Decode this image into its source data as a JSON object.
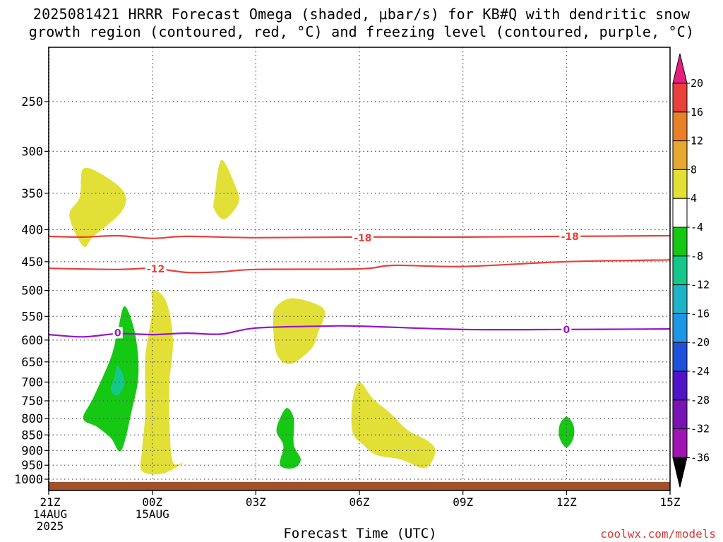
{
  "title": {
    "line1": "2025081421 HRRR Forecast Omega (shaded, μbar/s) for KB#Q with dendritic snow",
    "line2": "growth region (contoured, red, °C) and freezing level (contoured, purple, °C)"
  },
  "xlabel": "Forecast Time (UTC)",
  "credit": "coolwx.com/models",
  "chart_data": {
    "type": "heatmap",
    "title": "2025081421 HRRR Forecast Omega (shaded, μbar/s) for KB#Q with dendritic snow growth region (contoured, red, °C) and freezing level (contoured, purple, °C)",
    "xlabel": "Forecast Time (UTC)",
    "ylabel": "",
    "x_range_hours": [
      0,
      18
    ],
    "y_axis": {
      "ticks": [
        250,
        300,
        350,
        400,
        450,
        500,
        550,
        600,
        650,
        700,
        750,
        800,
        850,
        900,
        950,
        1000
      ],
      "range": [
        1020,
        200
      ],
      "scale": "log-pressure",
      "grid": true
    },
    "x_axis": {
      "ticks": [
        {
          "hour": 0,
          "lines": [
            "21Z",
            "14AUG",
            "2025"
          ]
        },
        {
          "hour": 3,
          "lines": [
            "00Z",
            "15AUG"
          ]
        },
        {
          "hour": 6,
          "lines": [
            "03Z"
          ]
        },
        {
          "hour": 9,
          "lines": [
            "06Z"
          ]
        },
        {
          "hour": 12,
          "lines": [
            "09Z"
          ]
        },
        {
          "hour": 15,
          "lines": [
            "12Z"
          ]
        },
        {
          "hour": 18,
          "lines": [
            "15Z"
          ]
        }
      ],
      "grid": true
    },
    "colorbar": {
      "labels": [
        "20",
        "16",
        "12",
        "8",
        "4",
        "-4",
        "-8",
        "-12",
        "-16",
        "-20",
        "-24",
        "-28",
        "-32",
        "-36"
      ],
      "colors": [
        "#e8c03a",
        "#e2e037",
        "#ffffff",
        "#14c814",
        "#14c88c",
        "#1eb4c8",
        "#1e96e6",
        "#1e50dc",
        "#5014c8",
        "#7814b4",
        "#a014b4",
        "#a0a0a0"
      ],
      "top_arrow_color": "#e6207a",
      "upper_colors": [
        "#e8403a",
        "#e88028",
        "#e6a830"
      ],
      "bottom_arrow_color": "#000000"
    },
    "contours": [
      {
        "name": "dendritic snow growth",
        "value": -18,
        "color": "#e8403a",
        "points": [
          [
            0,
            410
          ],
          [
            1,
            411
          ],
          [
            2,
            409
          ],
          [
            3,
            413
          ],
          [
            4,
            410
          ],
          [
            6,
            412
          ],
          [
            9,
            411
          ],
          [
            12,
            411
          ],
          [
            15,
            410
          ],
          [
            18,
            409
          ]
        ]
      },
      {
        "name": "dendritic snow growth",
        "value": -12,
        "color": "#e8403a",
        "points": [
          [
            0,
            461
          ],
          [
            2,
            463
          ],
          [
            3,
            461
          ],
          [
            4,
            468
          ],
          [
            5,
            467
          ],
          [
            6,
            463
          ],
          [
            9,
            462
          ],
          [
            10,
            456
          ],
          [
            12,
            458
          ],
          [
            15,
            450
          ],
          [
            18,
            447
          ]
        ]
      },
      {
        "name": "freezing level",
        "value": 0,
        "color": "#9614c8",
        "points": [
          [
            0,
            588
          ],
          [
            1,
            593
          ],
          [
            2,
            586
          ],
          [
            3,
            588
          ],
          [
            4,
            585
          ],
          [
            5,
            587
          ],
          [
            6,
            574
          ],
          [
            8,
            570
          ],
          [
            9,
            570
          ],
          [
            12,
            577
          ],
          [
            15,
            577
          ],
          [
            18,
            576
          ]
        ]
      }
    ],
    "contour_labels": [
      {
        "text": "-18",
        "color": "#e8403a",
        "hour": 9.1,
        "p": 412
      },
      {
        "text": "-18",
        "color": "#e8403a",
        "hour": 15.1,
        "p": 410
      },
      {
        "text": "-12",
        "color": "#e8403a",
        "hour": 3.1,
        "p": 462
      },
      {
        "text": "0",
        "color": "#9614c8",
        "hour": 2.0,
        "p": 584
      },
      {
        "text": "0",
        "color": "#9614c8",
        "hour": 15.0,
        "p": 577
      }
    ],
    "regions": [
      {
        "value": "4 to 8",
        "color": "#e2e037",
        "points": [
          [
            0.9,
            355
          ],
          [
            1.0,
            320
          ],
          [
            1.6,
            328
          ],
          [
            2.2,
            350
          ],
          [
            2.1,
            375
          ],
          [
            1.3,
            410
          ],
          [
            1.0,
            425
          ],
          [
            0.6,
            380
          ]
        ]
      },
      {
        "value": "4 to 8",
        "color": "#e2e037",
        "points": [
          [
            4.8,
            355
          ],
          [
            5.0,
            310
          ],
          [
            5.4,
            340
          ],
          [
            5.5,
            362
          ],
          [
            5.1,
            385
          ],
          [
            4.8,
            372
          ]
        ]
      },
      {
        "value": "4 to 8",
        "color": "#e2e037",
        "points": [
          [
            6.5,
            555
          ],
          [
            6.6,
            530
          ],
          [
            7.0,
            515
          ],
          [
            7.6,
            522
          ],
          [
            8.0,
            540
          ],
          [
            7.8,
            585
          ],
          [
            7.6,
            620
          ],
          [
            7.0,
            655
          ],
          [
            6.6,
            630
          ]
        ]
      },
      {
        "value": "4 to 8",
        "color": "#e2e037",
        "points": [
          [
            3.0,
            540
          ],
          [
            3.0,
            500
          ],
          [
            3.4,
            520
          ],
          [
            3.6,
            600
          ],
          [
            3.5,
            700
          ],
          [
            3.5,
            820
          ],
          [
            3.6,
            940
          ],
          [
            3.9,
            940
          ],
          [
            3.3,
            980
          ],
          [
            2.7,
            970
          ],
          [
            2.7,
            900
          ],
          [
            2.8,
            780
          ],
          [
            2.8,
            640
          ]
        ]
      },
      {
        "value": "4 to 8",
        "color": "#e2e037",
        "points": [
          [
            8.8,
            750
          ],
          [
            9.0,
            700
          ],
          [
            9.4,
            745
          ],
          [
            9.9,
            785
          ],
          [
            10.4,
            835
          ],
          [
            11.0,
            870
          ],
          [
            11.2,
            905
          ],
          [
            10.9,
            960
          ],
          [
            10.2,
            930
          ],
          [
            9.5,
            915
          ],
          [
            9.1,
            880
          ],
          [
            8.8,
            840
          ]
        ]
      },
      {
        "value": "-8 to -4",
        "color": "#14c814",
        "points": [
          [
            2.0,
            580
          ],
          [
            2.2,
            530
          ],
          [
            2.5,
            585
          ],
          [
            2.6,
            680
          ],
          [
            2.4,
            780
          ],
          [
            2.1,
            900
          ],
          [
            1.8,
            860
          ],
          [
            1.4,
            825
          ],
          [
            1.0,
            800
          ],
          [
            1.3,
            740
          ],
          [
            1.8,
            640
          ]
        ]
      },
      {
        "value": "-12 to -8",
        "color": "#14c88c",
        "points": [
          [
            1.9,
            690
          ],
          [
            2.0,
            660
          ],
          [
            2.2,
            700
          ],
          [
            2.0,
            735
          ],
          [
            1.8,
            720
          ]
        ]
      },
      {
        "value": "-8 to -4",
        "color": "#14c814",
        "points": [
          [
            6.7,
            800
          ],
          [
            6.9,
            770
          ],
          [
            7.1,
            800
          ],
          [
            7.1,
            880
          ],
          [
            7.3,
            930
          ],
          [
            7.1,
            960
          ],
          [
            6.7,
            950
          ],
          [
            6.8,
            885
          ],
          [
            6.6,
            840
          ]
        ]
      },
      {
        "value": "-8 to -4",
        "color": "#14c814",
        "points": [
          [
            15.0,
            795
          ],
          [
            15.2,
            820
          ],
          [
            15.2,
            860
          ],
          [
            15.0,
            890
          ],
          [
            14.8,
            860
          ],
          [
            14.8,
            820
          ]
        ]
      }
    ]
  }
}
